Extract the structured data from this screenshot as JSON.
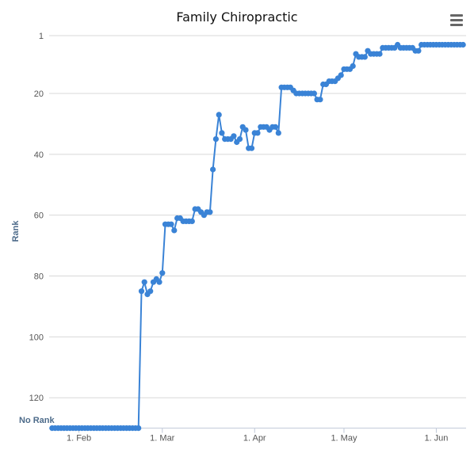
{
  "title": "Family Chiropractic",
  "menu_icon": "hamburger-menu-icon",
  "colors": {
    "series": "#3a83d6",
    "grid": "#d8d8d8",
    "axis_label": "#4d6b8a",
    "text": "#555555"
  },
  "chart_data": {
    "type": "line",
    "title": "Family Chiropractic",
    "xlabel": "",
    "ylabel": "Rank",
    "y_axis": {
      "reversed": true,
      "ticks": [
        "1",
        "20",
        "40",
        "60",
        "80",
        "100",
        "120"
      ],
      "bottom_label": "No Rank",
      "range": [
        1,
        130
      ]
    },
    "x_axis": {
      "ticks": [
        {
          "label": "1. Feb",
          "day": 0
        },
        {
          "label": "1. Mar",
          "day": 28
        },
        {
          "label": "1. Apr",
          "day": 59
        },
        {
          "label": "1. May",
          "day": 89
        },
        {
          "label": "1. Jun",
          "day": 120
        }
      ],
      "range": [
        -10,
        130
      ]
    },
    "grid": true,
    "no_rank_value": 130,
    "series": [
      {
        "name": "Family Chiropractic",
        "points": [
          [
            -9,
            130
          ],
          [
            -8,
            130
          ],
          [
            -7,
            130
          ],
          [
            -6,
            130
          ],
          [
            -5,
            130
          ],
          [
            -4,
            130
          ],
          [
            -3,
            130
          ],
          [
            -2,
            130
          ],
          [
            -1,
            130
          ],
          [
            0,
            130
          ],
          [
            1,
            130
          ],
          [
            2,
            130
          ],
          [
            3,
            130
          ],
          [
            4,
            130
          ],
          [
            5,
            130
          ],
          [
            6,
            130
          ],
          [
            7,
            130
          ],
          [
            8,
            130
          ],
          [
            9,
            130
          ],
          [
            10,
            130
          ],
          [
            11,
            130
          ],
          [
            12,
            130
          ],
          [
            13,
            130
          ],
          [
            14,
            130
          ],
          [
            15,
            130
          ],
          [
            16,
            130
          ],
          [
            17,
            130
          ],
          [
            18,
            130
          ],
          [
            19,
            130
          ],
          [
            20,
            130
          ],
          [
            21,
            85
          ],
          [
            22,
            82
          ],
          [
            23,
            86
          ],
          [
            24,
            85
          ],
          [
            25,
            82
          ],
          [
            26,
            81
          ],
          [
            27,
            82
          ],
          [
            28,
            79
          ],
          [
            29,
            63
          ],
          [
            30,
            63
          ],
          [
            31,
            63
          ],
          [
            32,
            65
          ],
          [
            33,
            61
          ],
          [
            34,
            61
          ],
          [
            35,
            62
          ],
          [
            36,
            62
          ],
          [
            37,
            62
          ],
          [
            38,
            62
          ],
          [
            39,
            58
          ],
          [
            40,
            58
          ],
          [
            41,
            59
          ],
          [
            42,
            60
          ],
          [
            43,
            59
          ],
          [
            44,
            59
          ],
          [
            45,
            45
          ],
          [
            46,
            35
          ],
          [
            47,
            27
          ],
          [
            48,
            33
          ],
          [
            49,
            35
          ],
          [
            50,
            35
          ],
          [
            51,
            35
          ],
          [
            52,
            34
          ],
          [
            53,
            36
          ],
          [
            54,
            35
          ],
          [
            55,
            31
          ],
          [
            56,
            32
          ],
          [
            57,
            38
          ],
          [
            58,
            38
          ],
          [
            59,
            33
          ],
          [
            60,
            33
          ],
          [
            61,
            31
          ],
          [
            62,
            31
          ],
          [
            63,
            31
          ],
          [
            64,
            32
          ],
          [
            65,
            31
          ],
          [
            66,
            31
          ],
          [
            67,
            33
          ],
          [
            68,
            18
          ],
          [
            69,
            18
          ],
          [
            70,
            18
          ],
          [
            71,
            18
          ],
          [
            72,
            19
          ],
          [
            73,
            20
          ],
          [
            74,
            20
          ],
          [
            75,
            20
          ],
          [
            76,
            20
          ],
          [
            77,
            20
          ],
          [
            78,
            20
          ],
          [
            79,
            20
          ],
          [
            80,
            22
          ],
          [
            81,
            22
          ],
          [
            82,
            17
          ],
          [
            83,
            17
          ],
          [
            84,
            16
          ],
          [
            85,
            16
          ],
          [
            86,
            16
          ],
          [
            87,
            15
          ],
          [
            88,
            14
          ],
          [
            89,
            12
          ],
          [
            90,
            12
          ],
          [
            91,
            12
          ],
          [
            92,
            11
          ],
          [
            93,
            7
          ],
          [
            94,
            8
          ],
          [
            95,
            8
          ],
          [
            96,
            8
          ],
          [
            97,
            6
          ],
          [
            98,
            7
          ],
          [
            99,
            7
          ],
          [
            100,
            7
          ],
          [
            101,
            7
          ],
          [
            102,
            5
          ],
          [
            103,
            5
          ],
          [
            104,
            5
          ],
          [
            105,
            5
          ],
          [
            106,
            5
          ],
          [
            107,
            4
          ],
          [
            108,
            5
          ],
          [
            109,
            5
          ],
          [
            110,
            5
          ],
          [
            111,
            5
          ],
          [
            112,
            5
          ],
          [
            113,
            6
          ],
          [
            114,
            6
          ],
          [
            115,
            4
          ],
          [
            116,
            4
          ],
          [
            117,
            4
          ],
          [
            118,
            4
          ],
          [
            119,
            4
          ],
          [
            120,
            4
          ],
          [
            121,
            4
          ],
          [
            122,
            4
          ],
          [
            123,
            4
          ],
          [
            124,
            4
          ],
          [
            125,
            4
          ],
          [
            126,
            4
          ],
          [
            127,
            4
          ],
          [
            128,
            4
          ],
          [
            129,
            4
          ]
        ]
      }
    ]
  }
}
